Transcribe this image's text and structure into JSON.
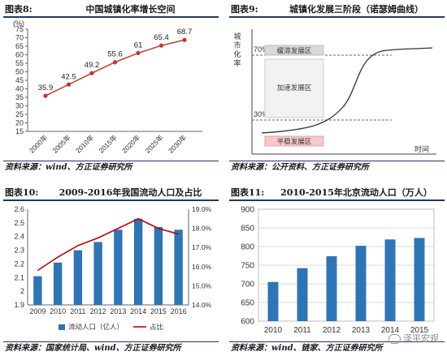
{
  "panels": [
    {
      "fig_no": "图表8:",
      "title": "中国城镇化率增长空间",
      "source": "资料来源：wind、方正证券研究所",
      "chart_data": {
        "type": "line",
        "unit": "(%)",
        "categories": [
          "2000年",
          "2005年",
          "2010年",
          "2015年",
          "2020年",
          "2025年",
          "2030年"
        ],
        "values": [
          35.9,
          42.5,
          49.2,
          55.6,
          61,
          65.4,
          68.7
        ],
        "data_labels": [
          "35.9",
          "42.5",
          "49.2",
          "55.6",
          "61",
          "65.4",
          "68.7"
        ],
        "ylim": [
          15,
          75
        ],
        "yticks": [
          "15",
          "20",
          "25",
          "30",
          "35",
          "40",
          "45",
          "50",
          "55",
          "60",
          "65",
          "70",
          "75"
        ],
        "colors": {
          "line": "#c0392b",
          "marker": "#c0392b"
        }
      }
    },
    {
      "fig_no": "图表9:",
      "title": "城镇化发展三阶段（诺瑟姆曲线）",
      "source": "资料来源：公开资料、方正证券研究所",
      "diagram": {
        "ylabel_chars": [
          "城",
          "市",
          "化",
          "率"
        ],
        "xlabel": "时间",
        "pct_high": "70%",
        "pct_low": "30%",
        "stages": [
          "缓滞发展区",
          "加速发展区",
          "平稳发展区"
        ],
        "colors": {
          "stage_top": "#d9d9d9",
          "stage_mid": "#f2f2f2",
          "stage_low": "#f8c8cc",
          "curve": "#333333"
        }
      }
    },
    {
      "fig_no": "图表10:",
      "title": "2009-2016年我国流动人口及占比",
      "source": "资料来源：国家统计局、wind、方正证券研究所",
      "chart_data": {
        "type": "bar",
        "categories": [
          "2009",
          "2010",
          "2011",
          "2012",
          "2013",
          "2014",
          "2015",
          "2016"
        ],
        "series": [
          {
            "name": "流动人口（亿人）",
            "kind": "bar",
            "axis": "left",
            "values": [
              2.11,
              2.21,
              2.3,
              2.36,
              2.45,
              2.53,
              2.47,
              2.45
            ]
          },
          {
            "name": "占比",
            "kind": "line",
            "axis": "right",
            "values": [
              15.8,
              16.5,
              17.1,
              17.5,
              18.0,
              18.5,
              18.0,
              17.7
            ]
          }
        ],
        "ylim_left": [
          1.9,
          2.6
        ],
        "yticks_left": [
          "1.9",
          "2",
          "2.1",
          "2.2",
          "2.3",
          "2.4",
          "2.5",
          "2.6"
        ],
        "ylim_right": [
          14.0,
          19.0
        ],
        "yticks_right": [
          "14.0%",
          "15.0%",
          "16.0%",
          "17.0%",
          "18.0%",
          "19.0%"
        ],
        "legend_placement": "bottom",
        "colors": {
          "bar": "#2e75b6",
          "line": "#c00000"
        }
      }
    },
    {
      "fig_no": "图表11:",
      "title": "2010-2015年北京流动人口（万人）",
      "source": "资料来源：wind、链家、方正证券研究所",
      "chart_data": {
        "type": "bar",
        "categories": [
          "2010",
          "2011",
          "2012",
          "2013",
          "2014",
          "2015"
        ],
        "values": [
          705,
          742,
          774,
          802,
          819,
          823
        ],
        "ylim": [
          600,
          900
        ],
        "yticks": [
          "600",
          "650",
          "700",
          "750",
          "800",
          "850",
          "900"
        ],
        "grid": true,
        "colors": {
          "bar": "#2e75b6",
          "grid": "#d9d9d9"
        }
      }
    }
  ],
  "watermark": "泽平宏观"
}
